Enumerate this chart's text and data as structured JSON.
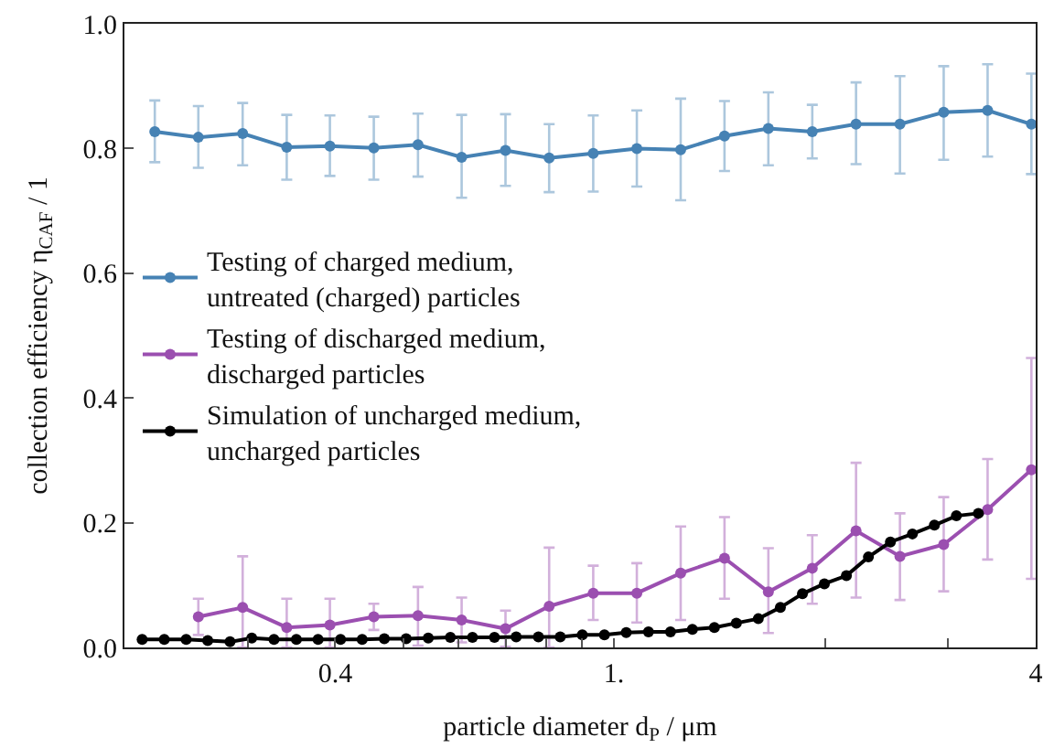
{
  "chart_data": {
    "type": "line",
    "xlabel": "particle diameter d$_{P}$ / μm",
    "ylabel": "collection efficiency η$_{CAF}$ / 1",
    "log": "x",
    "xlim": [
      0.2,
      4
    ],
    "ylim": [
      0,
      1.0
    ],
    "xticks": [
      {
        "value": 0.3,
        "label": null
      },
      0.4,
      {
        "value": 0.5,
        "label": null
      },
      {
        "value": 0.6,
        "label": null
      },
      {
        "value": 0.7,
        "label": null
      },
      {
        "value": 0.8,
        "label": null
      },
      {
        "value": 0.9,
        "label": null
      },
      {
        "value": 1,
        "label": "1."
      },
      {
        "value": 2,
        "label": null
      },
      {
        "value": 3,
        "label": null
      },
      4
    ],
    "yticks": [
      {
        "value": 0,
        "label": "0.0"
      },
      0.2,
      0.4,
      0.6,
      0.8,
      {
        "value": 1.0,
        "label": "1.0"
      }
    ],
    "legend": "left",
    "marker": "circle",
    "line_style": "solid",
    "series": [
      {
        "name": "Testing of charged medium,\nuntreated (charged) particles",
        "color": "#4682b4",
        "x": [
          0.221,
          0.255,
          0.295,
          0.341,
          0.393,
          0.454,
          0.525,
          0.606,
          0.7,
          0.808,
          0.934,
          1.078,
          1.245,
          1.438,
          1.661,
          1.919,
          2.216,
          2.56,
          2.956,
          3.415,
          3.944
        ],
        "values": [
          0.827,
          0.818,
          0.824,
          0.802,
          0.804,
          0.801,
          0.806,
          0.786,
          0.797,
          0.785,
          0.792,
          0.8,
          0.798,
          0.82,
          0.832,
          0.827,
          0.839,
          0.839,
          0.858,
          0.861,
          0.839
        ],
        "errors": [
          [
            0.778,
            0.877
          ],
          [
            0.769,
            0.868
          ],
          [
            0.773,
            0.873
          ],
          [
            0.75,
            0.854
          ],
          [
            0.756,
            0.853
          ],
          [
            0.75,
            0.851
          ],
          [
            0.755,
            0.856
          ],
          [
            0.721,
            0.854
          ],
          [
            0.74,
            0.855
          ],
          [
            0.73,
            0.839
          ],
          [
            0.731,
            0.853
          ],
          [
            0.739,
            0.861
          ],
          [
            0.717,
            0.88
          ],
          [
            0.764,
            0.876
          ],
          [
            0.773,
            0.89
          ],
          [
            0.784,
            0.87
          ],
          [
            0.775,
            0.906
          ],
          [
            0.76,
            0.916
          ],
          [
            0.782,
            0.932
          ],
          [
            0.787,
            0.935
          ],
          [
            0.759,
            0.92
          ]
        ]
      },
      {
        "name": "Testing of discharged medium,\ndischarged particles",
        "color": "#9b4fb0",
        "x": [
          0.255,
          0.295,
          0.341,
          0.393,
          0.454,
          0.525,
          0.606,
          0.7,
          0.808,
          0.934,
          1.078,
          1.245,
          1.438,
          1.661,
          1.919,
          2.216,
          2.56,
          2.956,
          3.415,
          3.944
        ],
        "values": [
          0.049,
          0.064,
          0.032,
          0.036,
          0.049,
          0.051,
          0.044,
          0.03,
          0.066,
          0.087,
          0.087,
          0.119,
          0.143,
          0.089,
          0.127,
          0.187,
          0.146,
          0.165,
          0.221,
          0.285
        ],
        "errors": [
          [
            0.02,
            0.078
          ],
          [
            0.0,
            0.146
          ],
          [
            0.0,
            0.078
          ],
          [
            0.0,
            0.078
          ],
          [
            0.028,
            0.07
          ],
          [
            0.003,
            0.097
          ],
          [
            0.008,
            0.08
          ],
          [
            0.001,
            0.059
          ],
          [
            0.0,
            0.16
          ],
          [
            0.044,
            0.131
          ],
          [
            0.04,
            0.135
          ],
          [
            0.044,
            0.194
          ],
          [
            0.078,
            0.209
          ],
          [
            0.023,
            0.159
          ],
          [
            0.07,
            0.18
          ],
          [
            0.08,
            0.296
          ],
          [
            0.076,
            0.215
          ],
          [
            0.09,
            0.241
          ],
          [
            0.141,
            0.302
          ],
          [
            0.11,
            0.464
          ]
        ]
      },
      {
        "name": "Simulation of uncharged medium,\nuncharged particles",
        "color": "#000000",
        "x": [
          0.212,
          0.228,
          0.245,
          0.263,
          0.283,
          0.304,
          0.327,
          0.352,
          0.378,
          0.407,
          0.437,
          0.47,
          0.505,
          0.543,
          0.584,
          0.628,
          0.675,
          0.725,
          0.78,
          0.838,
          0.901,
          0.969,
          1.041,
          1.12,
          1.204,
          1.294,
          1.391,
          1.495,
          1.607,
          1.728,
          1.858,
          1.997,
          2.147,
          2.308,
          2.481,
          2.667,
          2.867,
          3.082,
          3.313
        ],
        "values": [
          0.013,
          0.013,
          0.013,
          0.011,
          0.009,
          0.015,
          0.013,
          0.013,
          0.013,
          0.013,
          0.013,
          0.014,
          0.014,
          0.015,
          0.016,
          0.016,
          0.016,
          0.017,
          0.017,
          0.017,
          0.02,
          0.02,
          0.024,
          0.025,
          0.025,
          0.029,
          0.032,
          0.039,
          0.046,
          0.064,
          0.086,
          0.102,
          0.115,
          0.145,
          0.169,
          0.182,
          0.196,
          0.211,
          0.215
        ]
      }
    ]
  }
}
